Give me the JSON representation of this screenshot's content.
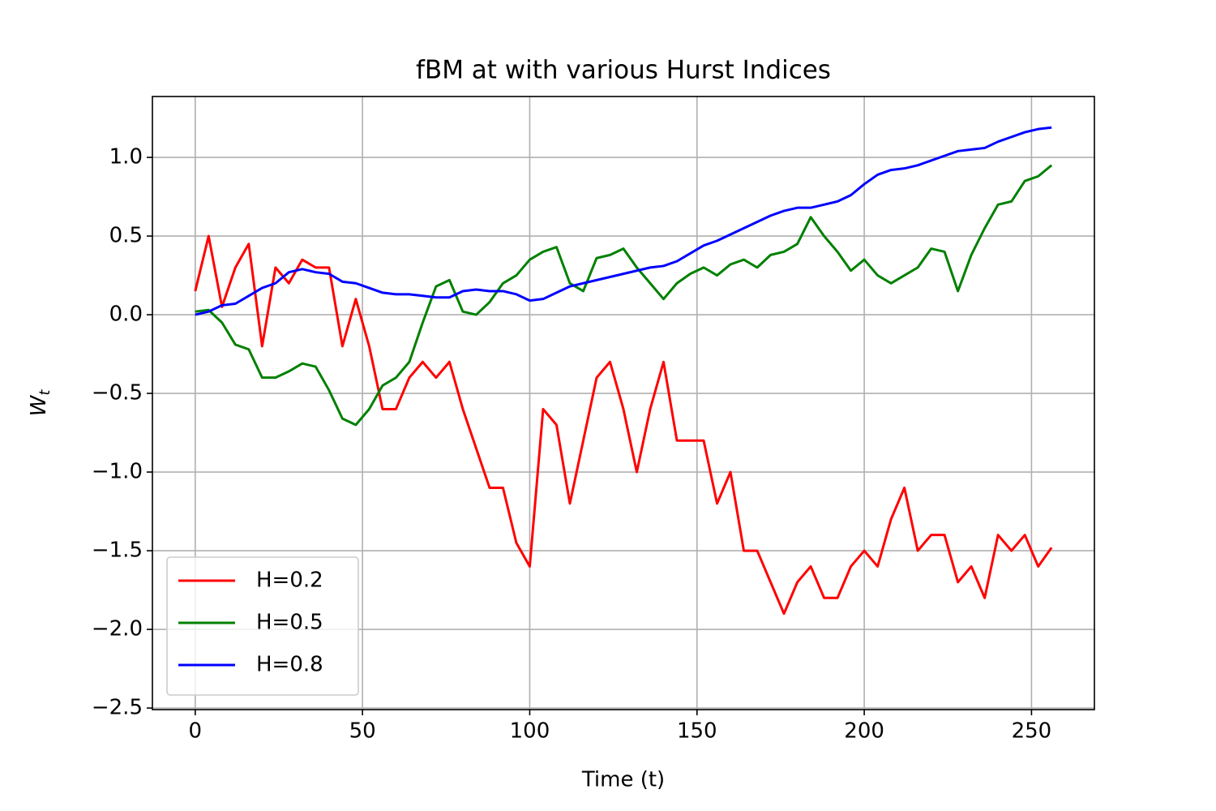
{
  "chart_data": {
    "type": "line",
    "title": "fBM at with various Hurst Indices",
    "xlabel": "Time (t)",
    "ylabel": "W",
    "ylabel_subscript": "t",
    "x": [
      0,
      4,
      8,
      12,
      16,
      20,
      24,
      28,
      32,
      36,
      40,
      44,
      48,
      52,
      56,
      60,
      64,
      68,
      72,
      76,
      80,
      84,
      88,
      92,
      96,
      100,
      104,
      108,
      112,
      116,
      120,
      124,
      128,
      132,
      136,
      140,
      144,
      148,
      152,
      156,
      160,
      164,
      168,
      172,
      176,
      180,
      184,
      188,
      192,
      196,
      200,
      204,
      208,
      212,
      216,
      220,
      224,
      228,
      232,
      236,
      240,
      244,
      248,
      252,
      256
    ],
    "series": [
      {
        "name": "H=0.2",
        "color": "#ff0000",
        "values": [
          0.15,
          0.5,
          0.05,
          0.3,
          0.45,
          -0.2,
          0.3,
          0.2,
          0.35,
          0.3,
          0.3,
          -0.2,
          0.1,
          -0.2,
          -0.6,
          -0.6,
          -0.4,
          -0.3,
          -0.4,
          -0.3,
          -0.6,
          -0.85,
          -1.1,
          -1.1,
          -1.45,
          -1.6,
          -0.6,
          -0.7,
          -1.2,
          -0.8,
          -0.4,
          -0.3,
          -0.6,
          -1.0,
          -0.6,
          -0.3,
          -0.8,
          -0.8,
          -0.8,
          -1.2,
          -1.0,
          -1.5,
          -1.5,
          -1.7,
          -1.9,
          -1.7,
          -1.6,
          -1.8,
          -1.8,
          -1.6,
          -1.5,
          -1.6,
          -1.3,
          -1.1,
          -1.5,
          -1.4,
          -1.4,
          -1.7,
          -1.6,
          -1.8,
          -1.4,
          -1.5,
          -1.4,
          -1.6,
          -1.48
        ]
      },
      {
        "name": "H=0.5",
        "color": "#008000",
        "values": [
          0.02,
          0.03,
          -0.05,
          -0.19,
          -0.22,
          -0.4,
          -0.4,
          -0.36,
          -0.31,
          -0.33,
          -0.48,
          -0.66,
          -0.7,
          -0.6,
          -0.45,
          -0.4,
          -0.3,
          -0.05,
          0.18,
          0.22,
          0.02,
          0.0,
          0.08,
          0.2,
          0.25,
          0.35,
          0.4,
          0.43,
          0.2,
          0.15,
          0.36,
          0.38,
          0.42,
          0.3,
          0.2,
          0.1,
          0.2,
          0.26,
          0.3,
          0.25,
          0.32,
          0.35,
          0.3,
          0.38,
          0.4,
          0.45,
          0.62,
          0.5,
          0.4,
          0.28,
          0.35,
          0.25,
          0.2,
          0.25,
          0.3,
          0.42,
          0.4,
          0.15,
          0.38,
          0.55,
          0.7,
          0.72,
          0.85,
          0.88,
          0.95
        ]
      },
      {
        "name": "H=0.8",
        "color": "#0000ff",
        "values": [
          0.0,
          0.02,
          0.06,
          0.07,
          0.12,
          0.17,
          0.2,
          0.27,
          0.29,
          0.27,
          0.26,
          0.21,
          0.2,
          0.17,
          0.14,
          0.13,
          0.13,
          0.12,
          0.11,
          0.11,
          0.15,
          0.16,
          0.15,
          0.15,
          0.13,
          0.09,
          0.1,
          0.14,
          0.18,
          0.2,
          0.22,
          0.24,
          0.26,
          0.28,
          0.3,
          0.31,
          0.34,
          0.39,
          0.44,
          0.47,
          0.51,
          0.55,
          0.59,
          0.63,
          0.66,
          0.68,
          0.68,
          0.7,
          0.72,
          0.76,
          0.83,
          0.89,
          0.92,
          0.93,
          0.95,
          0.98,
          1.01,
          1.04,
          1.05,
          1.06,
          1.1,
          1.13,
          1.16,
          1.18,
          1.19
        ]
      }
    ],
    "xlim": [
      -12.8,
      268.8
    ],
    "xticks": [
      0,
      50,
      100,
      150,
      200,
      250
    ],
    "ylim": [
      -2.51,
      1.387
    ],
    "yticks": [
      {
        "value": -2.5,
        "label": "−2.5"
      },
      {
        "value": -2.0,
        "label": "−2.0"
      },
      {
        "value": -1.5,
        "label": "−1.5"
      },
      {
        "value": -1.0,
        "label": "−1.0"
      },
      {
        "value": -0.5,
        "label": "−0.5"
      },
      {
        "value": 0.0,
        "label": "0.0"
      },
      {
        "value": 0.5,
        "label": "0.5"
      },
      {
        "value": 1.0,
        "label": "1.0"
      }
    ],
    "grid": true,
    "legend": "lower-left"
  }
}
